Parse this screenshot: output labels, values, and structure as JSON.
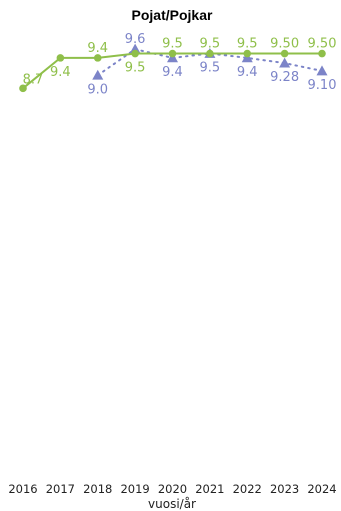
{
  "chart_data": {
    "type": "line",
    "title": "Pojat/Pojkar",
    "xlabel": "vuosi/år",
    "ylabel": "",
    "categories": [
      "2016",
      "2017",
      "2018",
      "2019",
      "2020",
      "2021",
      "2022",
      "2023",
      "2024"
    ],
    "ylim": [
      0,
      10.5
    ],
    "grid": false,
    "series": [
      {
        "color": "#8fbf4a",
        "marker": "circle",
        "line_style": "solid",
        "values": [
          8.7,
          9.4,
          9.4,
          9.5,
          9.5,
          9.5,
          9.5,
          9.5,
          9.5
        ],
        "labels": [
          "8.7",
          "9.4",
          "9.4",
          "9.5",
          "9.5",
          "9.5",
          "9.5",
          "9.50",
          "9.50"
        ],
        "label_position": [
          "left",
          "below",
          "above",
          "below",
          "above",
          "above",
          "above",
          "above",
          "above"
        ]
      },
      {
        "color": "#7c84c8",
        "marker": "triangle",
        "line_style": "dotted",
        "values": [
          null,
          null,
          9.0,
          9.6,
          9.4,
          9.5,
          9.4,
          9.28,
          9.1
        ],
        "labels": [
          "",
          "",
          "9.0",
          "9.6",
          "9.4",
          "9.5",
          "9.4",
          "9.28",
          "9.10"
        ],
        "label_position": [
          "",
          "",
          "below",
          "above",
          "below",
          "below",
          "below",
          "below",
          "below"
        ]
      }
    ]
  }
}
